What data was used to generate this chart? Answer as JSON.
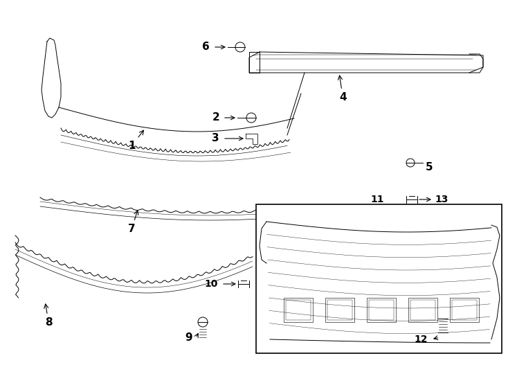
{
  "bg_color": "#ffffff",
  "line_color": "#000000",
  "figsize": [
    7.34,
    5.4
  ],
  "dpi": 100,
  "lw": 0.7
}
